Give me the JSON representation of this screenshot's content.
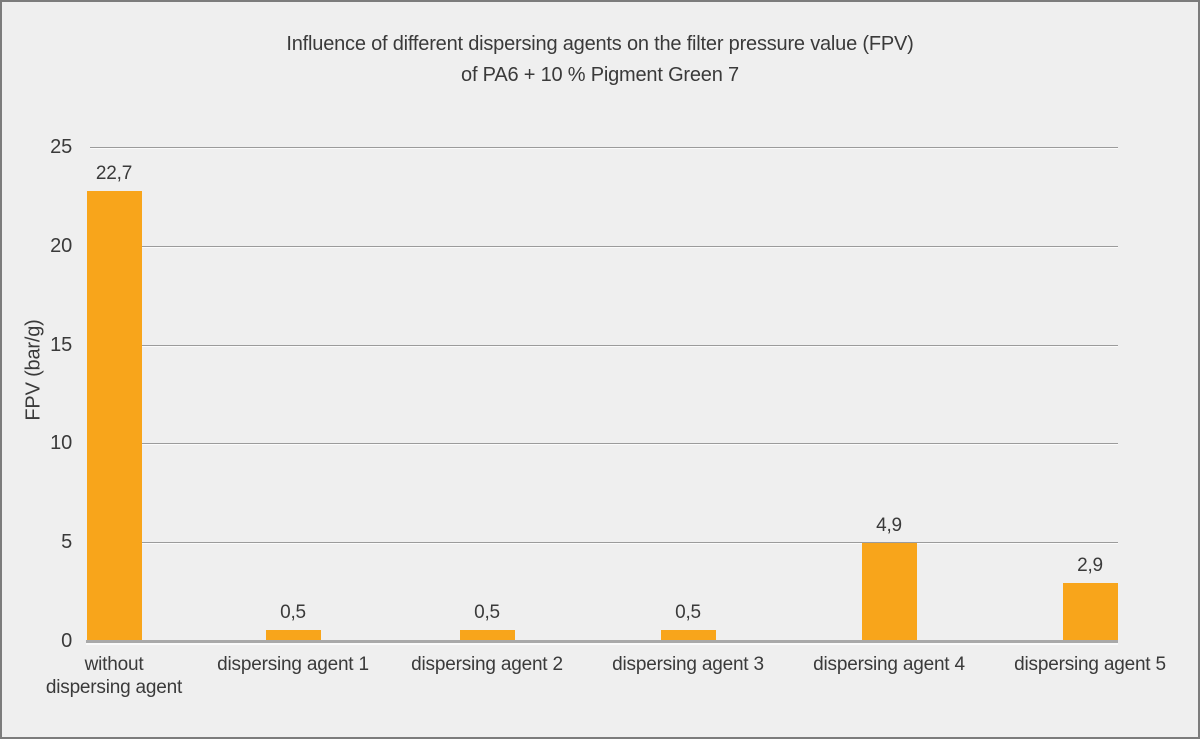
{
  "title": {
    "line1": "Influence of different dispersing agents on the filter pressure value (FPV)",
    "line2": "of PA6 + 10 % Pigment Green 7"
  },
  "y_axis": {
    "label": "FPV (bar/g)"
  },
  "chart_data": {
    "type": "bar",
    "title": "Influence of different dispersing agents on the filter pressure value (FPV) of PA6 + 10 % Pigment Green 7",
    "categories": [
      "without dispersing agent",
      "dispersing agent 1",
      "dispersing agent 2",
      "dispersing agent 3",
      "dispersing agent 4",
      "dispersing agent 5"
    ],
    "category_lines": [
      [
        "without",
        "dispersing agent"
      ],
      [
        "dispersing agent 1"
      ],
      [
        "dispersing agent 2"
      ],
      [
        "dispersing agent 3"
      ],
      [
        "dispersing agent 4"
      ],
      [
        "dispersing agent 5"
      ]
    ],
    "values": [
      22.7,
      0.5,
      0.5,
      0.5,
      4.9,
      2.9
    ],
    "value_labels": [
      "22,7",
      "0,5",
      "0,5",
      "0,5",
      "4,9",
      "2,9"
    ],
    "xlabel": "",
    "ylabel": "FPV (bar/g)",
    "ylim": [
      0,
      25
    ],
    "yticks": [
      0,
      5,
      10,
      15,
      20,
      25
    ],
    "grid": true,
    "legend": false,
    "decimal_separator": ","
  },
  "colors": {
    "background": "#EFEFEF",
    "bar": "#F8A51B",
    "gridline": "#9B9B9B",
    "axis_line": "#A9A9A9",
    "text": "#3A3A3A",
    "frame_border": "#7C7C7C"
  }
}
